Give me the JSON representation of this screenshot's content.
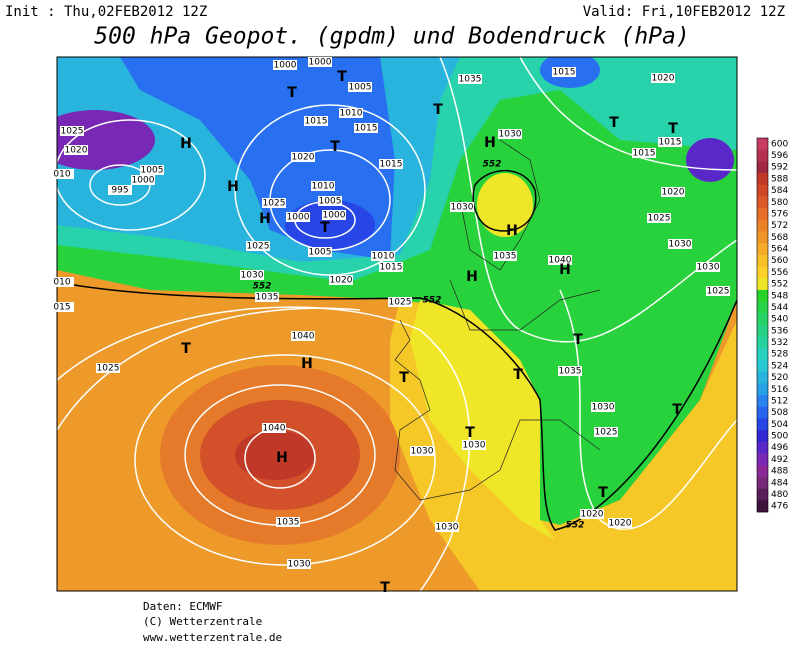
{
  "header": {
    "init": "Init : Thu,02FEB2012 12Z",
    "valid": "Valid: Fri,10FEB2012 12Z",
    "title": "500 hPa Geopot. (gpdm) und Bodendruck (hPa)"
  },
  "colorbar": {
    "levels": [
      600,
      596,
      592,
      588,
      584,
      580,
      576,
      572,
      568,
      564,
      560,
      556,
      552,
      548,
      544,
      540,
      536,
      532,
      528,
      524,
      520,
      516,
      512,
      508,
      504,
      500,
      496,
      492,
      488,
      484,
      480,
      476
    ],
    "colors": [
      "#c83c64",
      "#b43250",
      "#a02840",
      "#c03828",
      "#d04828",
      "#dc5a28",
      "#e66e28",
      "#eb8228",
      "#f09628",
      "#f5aa28",
      "#f8c028",
      "#fad228",
      "#f0e628",
      "#28d228",
      "#28d24b",
      "#28d264",
      "#28d282",
      "#28d2a0",
      "#28d2be",
      "#28c8d2",
      "#28b4dc",
      "#28a0e6",
      "#2882f0",
      "#2864f0",
      "#2846e6",
      "#3228d2",
      "#5a28c8",
      "#7828b4",
      "#8c2896",
      "#782878",
      "#5a1e5a",
      "#3c143c"
    ]
  },
  "map": {
    "isobar_labels": [
      "1000",
      "1000",
      "1005",
      "1025",
      "1020",
      "010",
      "1005",
      "1000",
      "995",
      "1015",
      "1010",
      "1015",
      "1020",
      "1015",
      "1010",
      "1005",
      "1025",
      "1000",
      "1000",
      "1025",
      "1005",
      "1010",
      "1015",
      "1020",
      "1030",
      "1035",
      "010",
      "015",
      "1025",
      "1040",
      "1025",
      "1040",
      "1035",
      "1030",
      "1030",
      "1030",
      "1030",
      "1035",
      "1030",
      "1030",
      "1035",
      "1040",
      "1035",
      "1030",
      "1025",
      "1020",
      "1020",
      "1015",
      "1020",
      "1015",
      "1015",
      "1020",
      "1025",
      "1030",
      "1030",
      "1025"
    ],
    "contour_552_labels": [
      "552",
      "552",
      "552",
      "552"
    ],
    "high_markers": [
      "H",
      "H",
      "H",
      "H",
      "H",
      "H",
      "H",
      "H",
      "H"
    ],
    "low_markers": [
      "T",
      "T",
      "T",
      "T",
      "T",
      "T",
      "T",
      "T",
      "T",
      "T",
      "T",
      "T",
      "T",
      "T",
      "T"
    ]
  },
  "footer": {
    "source": "Daten: ECMWF",
    "copyright": "(C) Wetterzentrale",
    "url": "www.wetterzentrale.de"
  }
}
